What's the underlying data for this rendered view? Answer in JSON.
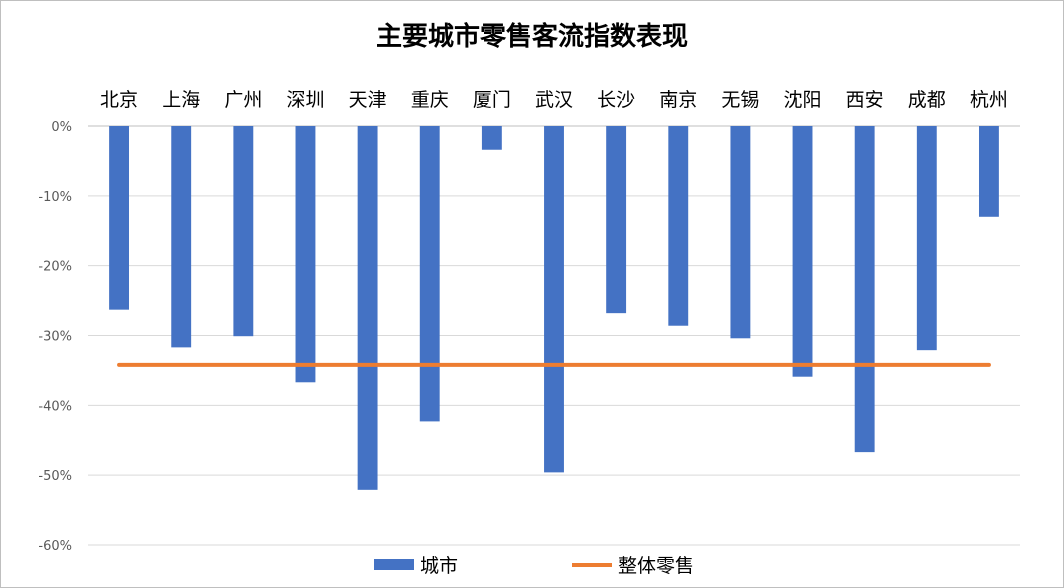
{
  "chart_data": {
    "type": "bar",
    "title": "主要城市零售客流指数表现",
    "categories": [
      "北京",
      "上海",
      "广州",
      "深圳",
      "天津",
      "重庆",
      "厦门",
      "武汉",
      "长沙",
      "南京",
      "无锡",
      "沈阳",
      "西安",
      "成都",
      "杭州"
    ],
    "series": [
      {
        "name": "城市",
        "type": "bar",
        "color": "#4472C4",
        "values": [
          -26.3,
          -31.7,
          -30.1,
          -36.7,
          -52.1,
          -42.3,
          -3.4,
          -49.6,
          -26.8,
          -28.6,
          -30.4,
          -35.9,
          -46.7,
          -32.1,
          -13.0
        ]
      },
      {
        "name": "整体零售",
        "type": "line",
        "color": "#ED7D31",
        "value": -34.2
      }
    ],
    "yticks": [
      "0%",
      "-10%",
      "-20%",
      "-30%",
      "-40%",
      "-50%",
      "-60%"
    ],
    "ylim": [
      -60,
      0
    ],
    "xlabel": "",
    "ylabel": "",
    "grid": true,
    "legend": "bottom"
  }
}
